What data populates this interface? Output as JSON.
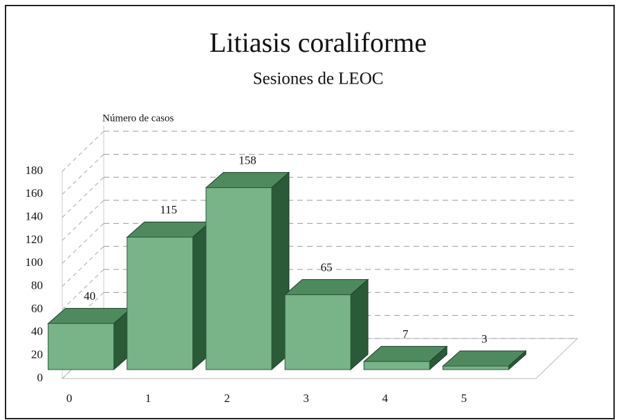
{
  "chart_data": {
    "type": "bar3d",
    "title": "Litiasis coraliforme",
    "subtitle": "Sesiones de LEOC",
    "y_label": "Número de casos",
    "categories": [
      "0",
      "1",
      "2",
      "3",
      "4",
      "5"
    ],
    "values": [
      40,
      115,
      158,
      65,
      7,
      3
    ],
    "color": "#78b488",
    "ylim": [
      0,
      180
    ],
    "yticks": [
      0,
      20,
      40,
      60,
      80,
      100,
      120,
      140,
      160,
      180
    ],
    "grid": true
  }
}
